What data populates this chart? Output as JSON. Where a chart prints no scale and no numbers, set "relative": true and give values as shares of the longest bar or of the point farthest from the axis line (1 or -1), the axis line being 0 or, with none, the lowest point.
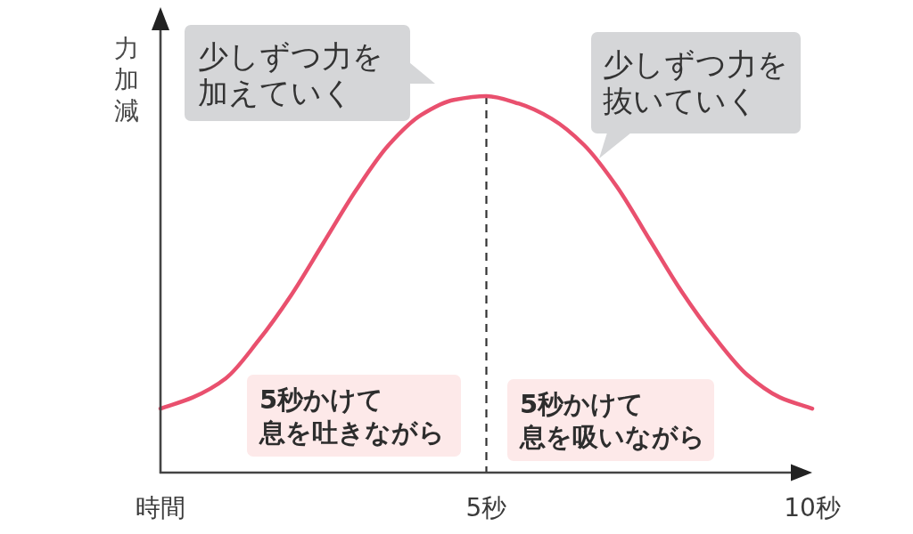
{
  "chart_data": {
    "type": "line",
    "relative": true,
    "ylabel": "力加減",
    "x": [
      0,
      0.5,
      1,
      1.5,
      2,
      2.5,
      3,
      3.5,
      4,
      4.5,
      5,
      5.5,
      6,
      6.5,
      7,
      7.5,
      8,
      8.5,
      9,
      9.5,
      10
    ],
    "values": [
      0.17,
      0.2,
      0.25,
      0.35,
      0.47,
      0.61,
      0.75,
      0.87,
      0.95,
      0.99,
      1,
      0.98,
      0.94,
      0.87,
      0.76,
      0.62,
      0.48,
      0.36,
      0.26,
      0.2,
      0.17
    ],
    "color": "#e9506e",
    "xlim": [
      0,
      10
    ],
    "xticks": [
      {
        "value": 0,
        "label": "時間"
      },
      {
        "value": 5,
        "label": "5秒"
      },
      {
        "value": 10,
        "label": "10秒"
      }
    ],
    "ref_lines": [
      {
        "axis": "x",
        "value": 5,
        "line_style": "dashed",
        "color": "#333333"
      }
    ],
    "annotations": [
      "少しずつ力を加えていく",
      "少しずつ力を抜いていく",
      "5秒かけて息を吐きながら",
      "5秒かけて息を吸いながら"
    ]
  }
}
